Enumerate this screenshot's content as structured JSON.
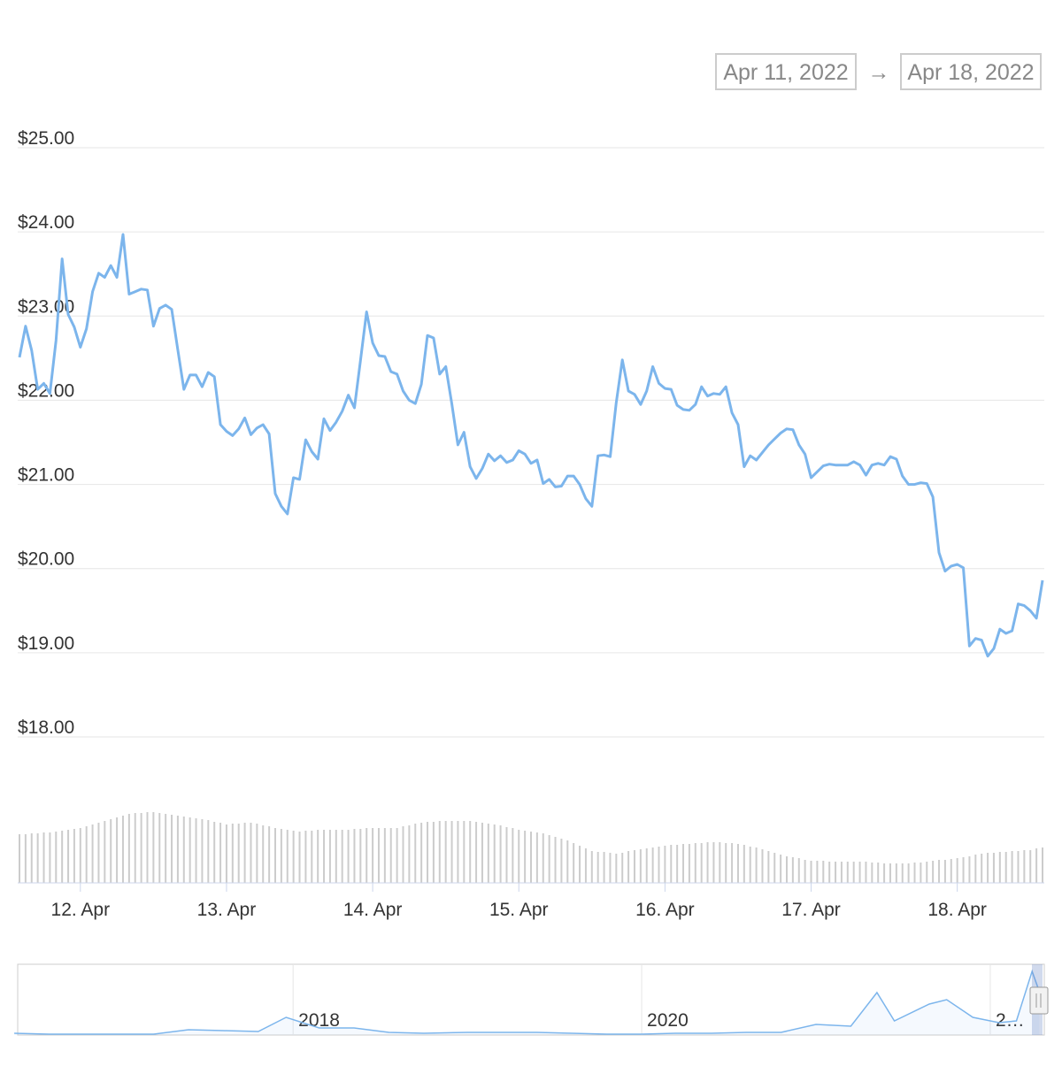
{
  "chart_data": {
    "type": "line",
    "range": {
      "from": "Apr 11, 2022",
      "arrow": "→",
      "to": "Apr 18, 2022"
    },
    "x": [
      0,
      1,
      2,
      3,
      4,
      5,
      6,
      7,
      8,
      9,
      10,
      11,
      12,
      13,
      14,
      15,
      16,
      17,
      18,
      19,
      20,
      21,
      22,
      23,
      24,
      25,
      26,
      27,
      28,
      29,
      30,
      31,
      32,
      33,
      34,
      35,
      36,
      37,
      38,
      39,
      40,
      41,
      42,
      43,
      44,
      45,
      46,
      47,
      48,
      49,
      50,
      51,
      52,
      53,
      54,
      55,
      56,
      57,
      58,
      59,
      60,
      61,
      62,
      63,
      64,
      65,
      66,
      67,
      68,
      69,
      70,
      71,
      72,
      73,
      74,
      75,
      76,
      77,
      78,
      79,
      80,
      81,
      82,
      83,
      84,
      85,
      86,
      87,
      88,
      89,
      90,
      91,
      92,
      93,
      94,
      95,
      96,
      97,
      98,
      99,
      100,
      101,
      102,
      103,
      104,
      105,
      106,
      107,
      108,
      109,
      110,
      111,
      112,
      113,
      114,
      115,
      116,
      117,
      118,
      119,
      120,
      121,
      122,
      123,
      124,
      125,
      126,
      127,
      128,
      129,
      130,
      131,
      132,
      133,
      134,
      135,
      136,
      137,
      138,
      139,
      140,
      141,
      142,
      143,
      144,
      145,
      146,
      147,
      148,
      149,
      150,
      151,
      152,
      153,
      154,
      155,
      156,
      157,
      158,
      159,
      160,
      161,
      162,
      163,
      164,
      165,
      166,
      167,
      168
    ],
    "series": [
      {
        "color": "#7cb5ec",
        "values": [
          22.51,
          22.88,
          22.59,
          22.13,
          22.2,
          22.08,
          22.71,
          23.68,
          23.02,
          22.87,
          22.63,
          22.85,
          23.29,
          23.51,
          23.46,
          23.6,
          23.46,
          23.97,
          23.26,
          23.29,
          23.32,
          23.31,
          22.88,
          23.09,
          23.13,
          23.08,
          22.6,
          22.13,
          22.3,
          22.3,
          22.16,
          22.33,
          22.28,
          21.71,
          21.63,
          21.58,
          21.66,
          21.79,
          21.59,
          21.67,
          21.71,
          21.6,
          20.89,
          20.74,
          20.65,
          21.08,
          21.06,
          21.53,
          21.39,
          21.3,
          21.78,
          21.64,
          21.74,
          21.87,
          22.06,
          21.91,
          22.47,
          23.05,
          22.68,
          22.53,
          22.52,
          22.34,
          22.31,
          22.11,
          22.0,
          21.96,
          22.19,
          22.77,
          22.74,
          22.31,
          22.4,
          21.96,
          21.47,
          21.62,
          21.21,
          21.07,
          21.19,
          21.36,
          21.28,
          21.34,
          21.26,
          21.29,
          21.4,
          21.36,
          21.25,
          21.29,
          21.01,
          21.06,
          20.97,
          20.98,
          21.1,
          21.1,
          21.0,
          20.83,
          20.74,
          21.34,
          21.35,
          21.33,
          21.97,
          22.48,
          22.11,
          22.07,
          21.95,
          22.11,
          22.4,
          22.2,
          22.14,
          22.13,
          21.94,
          21.89,
          21.88,
          21.95,
          22.16,
          22.05,
          22.08,
          22.07,
          22.16,
          21.85,
          21.71,
          21.21,
          21.34,
          21.29,
          21.38,
          21.47,
          21.54,
          21.61,
          21.66,
          21.65,
          21.47,
          21.36,
          21.08,
          21.15,
          21.22,
          21.24,
          21.23,
          21.23,
          21.23,
          21.27,
          21.23,
          21.11,
          21.23,
          21.25,
          21.23,
          21.33,
          21.3,
          21.1,
          21.0,
          21.0,
          21.02,
          21.01,
          20.85,
          20.19,
          19.97,
          20.03,
          20.05,
          20.01,
          19.08,
          19.17,
          19.15,
          18.96,
          19.05,
          19.28,
          19.23,
          19.26,
          19.58,
          19.56,
          19.5,
          19.41,
          19.86
        ]
      }
    ],
    "xlim": [
      0,
      168
    ],
    "xticks": [
      {
        "value": 10,
        "label": "12. Apr"
      },
      {
        "value": 34,
        "label": "13. Apr"
      },
      {
        "value": 58,
        "label": "14. Apr"
      },
      {
        "value": 82,
        "label": "15. Apr"
      },
      {
        "value": 106,
        "label": "16. Apr"
      },
      {
        "value": 130,
        "label": "17. Apr"
      },
      {
        "value": 154,
        "label": "18. Apr"
      }
    ],
    "ylim": [
      18,
      25
    ],
    "yticks": [
      {
        "value": 18,
        "label": "$18.00"
      },
      {
        "value": 19,
        "label": "$19.00"
      },
      {
        "value": 20,
        "label": "$20.00"
      },
      {
        "value": 21,
        "label": "$21.00"
      },
      {
        "value": 22,
        "label": "$22.00"
      },
      {
        "value": 23,
        "label": "$23.00"
      },
      {
        "value": 24,
        "label": "$24.00"
      },
      {
        "value": 25,
        "label": "$25.00"
      }
    ],
    "grid": true,
    "volume": {
      "color": "#cccccc",
      "ylim": [
        0,
        100
      ],
      "values": [
        55,
        55,
        56,
        56,
        57,
        57,
        58,
        59,
        60,
        61,
        62,
        64,
        66,
        68,
        70,
        72,
        74,
        76,
        78,
        79,
        79,
        80,
        80,
        79,
        78,
        77,
        76,
        75,
        74,
        73,
        72,
        71,
        69,
        68,
        66,
        67,
        67,
        68,
        68,
        67,
        65,
        64,
        62,
        61,
        60,
        59,
        58,
        59,
        59,
        60,
        60,
        60,
        60,
        60,
        60,
        61,
        61,
        62,
        62,
        62,
        62,
        62,
        62,
        64,
        65,
        67,
        68,
        69,
        69,
        70,
        70,
        70,
        70,
        70,
        70,
        69,
        68,
        67,
        66,
        65,
        63,
        62,
        60,
        59,
        58,
        57,
        56,
        54,
        52,
        50,
        48,
        45,
        42,
        39,
        36,
        35,
        35,
        34,
        33,
        34,
        36,
        37,
        38,
        39,
        40,
        41,
        42,
        43,
        43,
        44,
        44,
        45,
        45,
        46,
        46,
        46,
        45,
        45,
        44,
        43,
        41,
        40,
        38,
        36,
        34,
        32,
        30,
        29,
        28,
        26,
        25,
        25,
        25,
        24,
        24,
        24,
        24,
        24,
        24,
        24,
        23,
        23,
        22,
        22,
        22,
        22,
        22,
        23,
        23,
        24,
        25,
        26,
        26,
        27,
        28,
        29,
        30,
        32,
        33,
        34,
        34,
        35,
        35,
        36,
        36,
        37,
        37,
        39,
        40
      ]
    },
    "navigator": {
      "color": "#7cb5ec",
      "xlim": [
        2016.42,
        2022.31
      ],
      "ylim": [
        0,
        80
      ],
      "xticks": [
        2018,
        2020,
        {
          "value": 2022,
          "label": "2…"
        }
      ],
      "x": [
        2016.4,
        2016.6,
        2016.8,
        2017.0,
        2017.2,
        2017.4,
        2017.6,
        2017.8,
        2017.96,
        2018.15,
        2018.35,
        2018.55,
        2018.75,
        2019.0,
        2019.2,
        2019.4,
        2019.6,
        2019.8,
        2020.0,
        2020.2,
        2020.4,
        2020.6,
        2020.8,
        2021.0,
        2021.2,
        2021.35,
        2021.45,
        2021.65,
        2021.75,
        2021.9,
        2022.05,
        2022.15,
        2022.24,
        2022.28
      ],
      "values": [
        2,
        1,
        1,
        1,
        1,
        6,
        5,
        4,
        20,
        8,
        8,
        3,
        2,
        3,
        3,
        3,
        2,
        1,
        1,
        2,
        2,
        3,
        3,
        12,
        10,
        48,
        16,
        35,
        40,
        20,
        14,
        16,
        72,
        50
      ]
    }
  }
}
